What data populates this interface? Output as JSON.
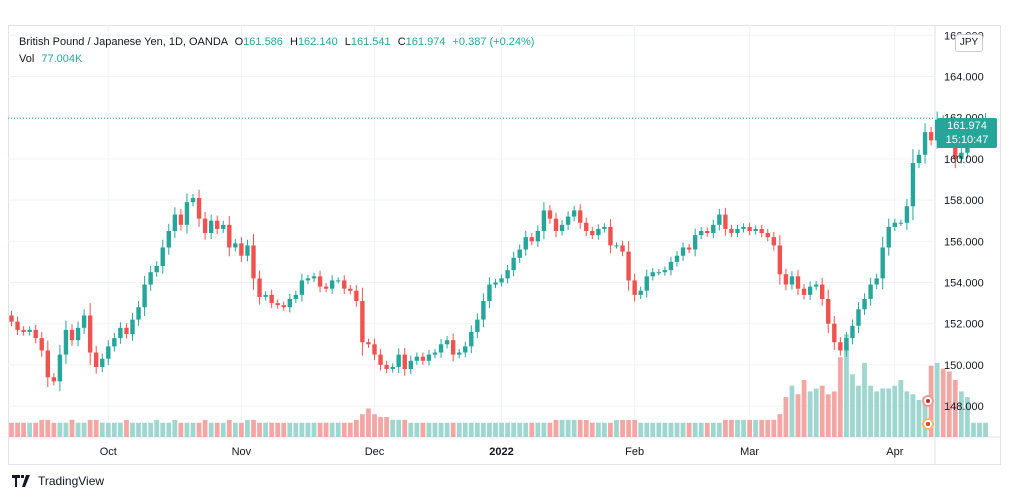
{
  "legend": {
    "symbol": "British Pound / Japanese Yen, 1D, OANDA",
    "o_label": "O",
    "o_value": "161.586",
    "h_label": "H",
    "h_value": "162.140",
    "l_label": "L",
    "l_value": "161.541",
    "c_label": "C",
    "c_value": "161.974",
    "change": "+0.387 (+0.24%)",
    "vol_label": "Vol",
    "vol_value": "77.004K"
  },
  "currency_badge": "JPY",
  "last_price": {
    "price": "161.974",
    "countdown": "15:10:47"
  },
  "brand": "TradingView",
  "colors": {
    "up": "#26a69a",
    "down": "#ef5350",
    "up_vol": "#9fd6cf",
    "down_vol": "#f2a7a5",
    "grid": "#f0f3fa",
    "axis_text": "#131722"
  },
  "chart_data": {
    "type": "candlestick",
    "ylim": [
      146.5,
      166.5
    ],
    "y_ticks": [
      "148.000",
      "150.000",
      "152.000",
      "154.000",
      "156.000",
      "158.000",
      "160.000",
      "162.000",
      "164.000",
      "166.000"
    ],
    "x_ticks": [
      {
        "label": "Oct",
        "index": 16
      },
      {
        "label": "Nov",
        "index": 38
      },
      {
        "label": "Dec",
        "index": 60
      },
      {
        "label": "2022",
        "index": 81
      },
      {
        "label": "Feb",
        "index": 103
      },
      {
        "label": "Mar",
        "index": 122
      },
      {
        "label": "Apr",
        "index": 146
      }
    ],
    "close": [
      152.1,
      151.7,
      151.6,
      151.7,
      151.3,
      150.7,
      149.4,
      149.2,
      150.5,
      151.7,
      151.2,
      151.8,
      152.4,
      150.6,
      149.9,
      150.3,
      150.9,
      151.3,
      151.8,
      151.5,
      152.2,
      152.8,
      153.9,
      154.5,
      154.8,
      155.7,
      156.5,
      157.3,
      156.8,
      157.9,
      158.1,
      157.1,
      156.4,
      157.0,
      156.6,
      156.8,
      155.7,
      155.9,
      155.3,
      155.8,
      154.2,
      153.3,
      153.4,
      153.0,
      152.9,
      152.8,
      153.2,
      153.4,
      154.1,
      154.2,
      154.3,
      153.8,
      153.7,
      154.1,
      154.1,
      153.7,
      153.6,
      153.1,
      151.1,
      151.0,
      150.5,
      150.0,
      149.8,
      149.9,
      150.5,
      149.8,
      150.2,
      150.4,
      150.2,
      150.5,
      150.6,
      151.0,
      151.2,
      150.5,
      150.6,
      150.9,
      151.6,
      152.2,
      153.1,
      153.9,
      154.0,
      154.2,
      154.6,
      155.2,
      155.6,
      156.2,
      156.0,
      156.5,
      157.5,
      157.1,
      156.5,
      156.8,
      157.2,
      157.5,
      156.9,
      156.5,
      156.3,
      156.6,
      156.7,
      155.8,
      155.8,
      155.5,
      154.1,
      153.4,
      153.6,
      154.3,
      154.5,
      154.5,
      154.6,
      155.0,
      155.3,
      155.7,
      155.6,
      156.3,
      156.5,
      156.4,
      156.8,
      157.3,
      156.6,
      156.4,
      156.6,
      156.7,
      156.5,
      156.6,
      156.4,
      156.2,
      155.8,
      154.4,
      153.9,
      154.3,
      153.7,
      153.4,
      153.8,
      153.9,
      153.2,
      152.0,
      151.1,
      150.7,
      151.3,
      151.9,
      152.7,
      153.2,
      153.9,
      154.2,
      155.7,
      156.7,
      156.9,
      156.9,
      157.7,
      159.8,
      160.2,
      161.3,
      160.9,
      161.9,
      161.6,
      161.2,
      160.0,
      160.3,
      160.8,
      161.3,
      161.6,
      161.974
    ]
  }
}
